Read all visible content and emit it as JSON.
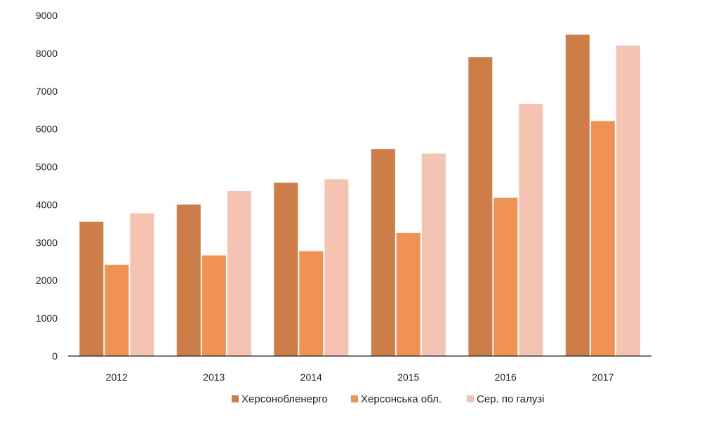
{
  "chart_data": {
    "type": "bar",
    "categories": [
      "2012",
      "2013",
      "2014",
      "2015",
      "2016",
      "2017"
    ],
    "series": [
      {
        "name": "Херсонобленерго",
        "color": "#cd7d48",
        "values": [
          3550,
          4000,
          4580,
          5470,
          7900,
          8490
        ]
      },
      {
        "name": "Херсонська обл.",
        "color": "#ef9253",
        "values": [
          2410,
          2660,
          2770,
          3250,
          4180,
          6210
        ]
      },
      {
        "name": "Сер. по галузі",
        "color": "#f5c3b2",
        "values": [
          3770,
          4360,
          4670,
          5350,
          6660,
          8200
        ]
      }
    ],
    "ylim": [
      0,
      9000
    ],
    "yticks": [
      "0",
      "1000",
      "2000",
      "3000",
      "4000",
      "5000",
      "6000",
      "7000",
      "8000",
      "9000"
    ],
    "grid": false,
    "legend_position": "bottom-center"
  }
}
